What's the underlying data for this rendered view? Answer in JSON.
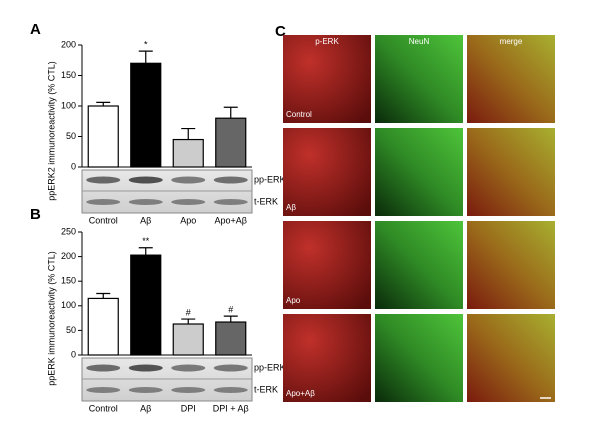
{
  "chart_data": [
    {
      "type": "bar",
      "panel": "A",
      "y_label": "ppERK2 immunoreactivity (% CTL)",
      "categories": [
        "Control",
        "Aβ",
        "Apo",
        "Apo+Aβ"
      ],
      "values": [
        100,
        170,
        45,
        80
      ],
      "errors": [
        6,
        20,
        18,
        18
      ],
      "value_annotations": [
        null,
        "*",
        null,
        null
      ],
      "colors": [
        "#ffffff",
        "#000000",
        "#cccccc",
        "#666666"
      ],
      "ylim": [
        0,
        200
      ],
      "yticks": [
        0,
        50,
        100,
        150,
        200
      ],
      "blot_labels": [
        "pp-ERK2",
        "t-ERK"
      ]
    },
    {
      "type": "bar",
      "panel": "B",
      "y_label": "ppERK immunoreactivity (% CTL)",
      "categories": [
        "Control",
        "Aβ",
        "DPI",
        "DPI + Aβ"
      ],
      "values": [
        115,
        203,
        63,
        67
      ],
      "errors": [
        10,
        15,
        10,
        12
      ],
      "value_annotations": [
        null,
        "**",
        "#",
        "#"
      ],
      "colors": [
        "#ffffff",
        "#000000",
        "#cccccc",
        "#666666"
      ],
      "ylim": [
        0,
        250
      ],
      "yticks": [
        0,
        50,
        100,
        150,
        200,
        250
      ],
      "blot_labels": [
        "pp-ERK2",
        "t-ERK"
      ]
    }
  ],
  "panel_c": {
    "panel": "C",
    "columns": [
      "p-ERK",
      "NeuN",
      "merge"
    ],
    "rows": [
      "Control",
      "Aβ",
      "Apo",
      "Apo+Aβ"
    ]
  }
}
